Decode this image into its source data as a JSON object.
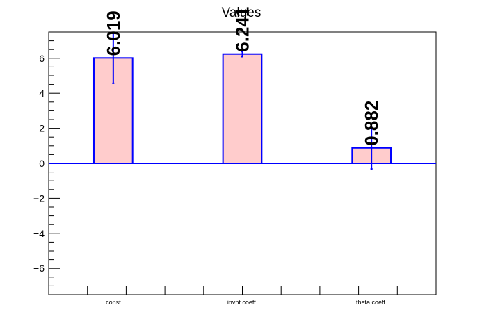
{
  "chart_data": {
    "type": "bar",
    "title": "Values",
    "xlabel": "",
    "ylabel": "",
    "categories": [
      "const",
      "invpt coeff.",
      "theta coeff."
    ],
    "values": [
      6.019,
      6.241,
      0.882
    ],
    "value_labels": [
      "6.019",
      "6.241",
      "0.882"
    ],
    "errors_low": [
      1.45,
      0.15,
      1.2
    ],
    "errors_high": [
      1.4,
      0.15,
      1.15
    ],
    "ylim": [
      -7.5,
      7.5
    ],
    "y_ticks": [
      -6,
      -4,
      -2,
      0,
      2,
      4,
      6
    ],
    "y_tick_labels": [
      "−6",
      "−4",
      "−2",
      "0",
      "2",
      "4",
      "6"
    ],
    "grid": false,
    "legend": "none",
    "colors": {
      "bar_fill": "#ffcccc",
      "bar_edge": "#0000ff",
      "axis": "#000000"
    }
  }
}
